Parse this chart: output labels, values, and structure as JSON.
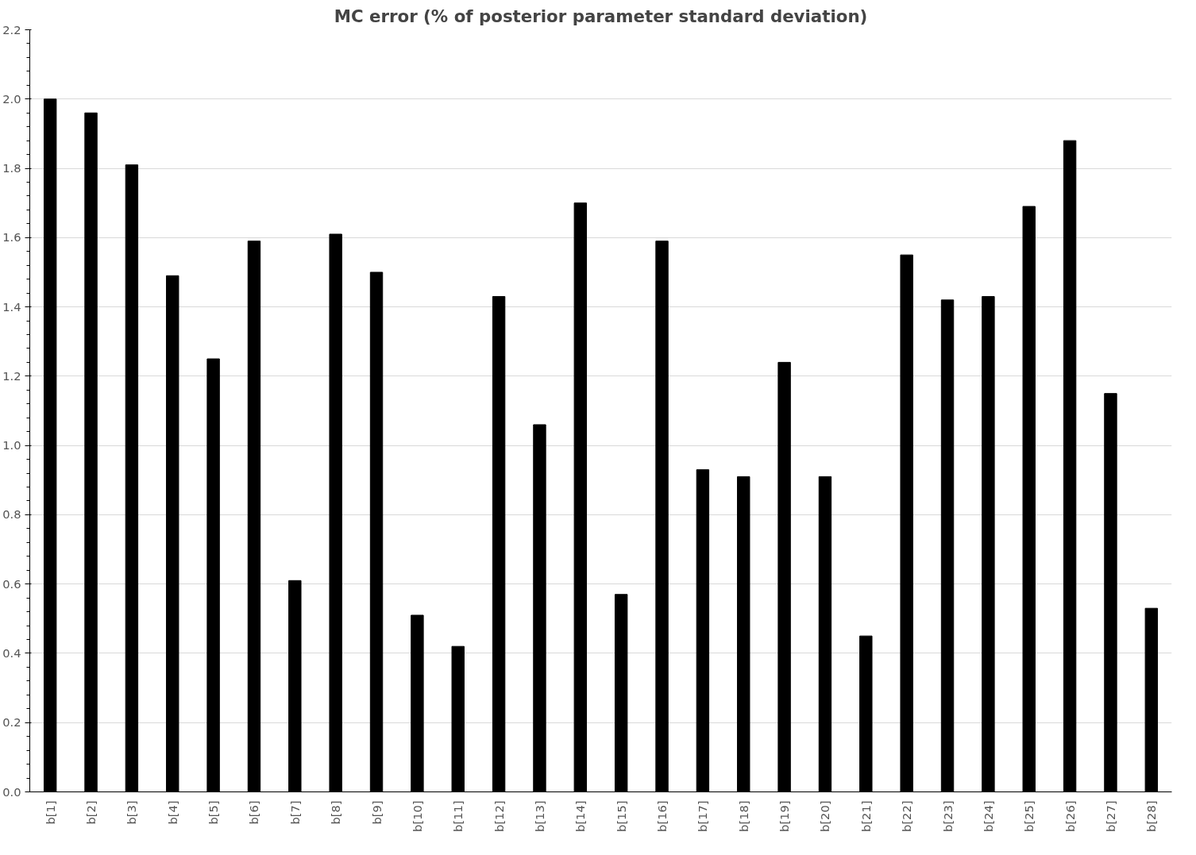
{
  "chart_data": {
    "type": "bar",
    "title": "MC error (% of posterior parameter standard deviation)",
    "categories": [
      "b[1]",
      "b[2]",
      "b[3]",
      "b[4]",
      "b[5]",
      "b[6]",
      "b[7]",
      "b[8]",
      "b[9]",
      "b[10]",
      "b[11]",
      "b[12]",
      "b[13]",
      "b[14]",
      "b[15]",
      "b[16]",
      "b[17]",
      "b[18]",
      "b[19]",
      "b[20]",
      "b[21]",
      "b[22]",
      "b[23]",
      "b[24]",
      "b[25]",
      "b[26]",
      "b[27]",
      "b[28]"
    ],
    "values": [
      2.0,
      1.96,
      1.81,
      1.49,
      1.25,
      1.59,
      0.61,
      1.61,
      1.5,
      0.51,
      0.42,
      1.43,
      1.06,
      1.7,
      0.57,
      1.59,
      0.93,
      0.91,
      1.24,
      0.91,
      0.45,
      1.55,
      1.42,
      1.43,
      1.69,
      1.88,
      1.15,
      0.53
    ],
    "color": "#000000",
    "ylim": [
      0,
      2.2
    ],
    "yticks": [
      {
        "value": 0,
        "label": "0.0"
      },
      0.2,
      0.4,
      0.6,
      0.8,
      {
        "value": 1,
        "label": "1.0"
      },
      1.2,
      1.4,
      1.6,
      1.8,
      {
        "value": 2,
        "label": "2.0"
      },
      2.2
    ],
    "grid": "y"
  }
}
